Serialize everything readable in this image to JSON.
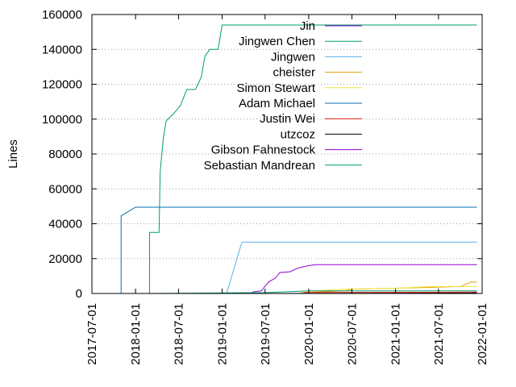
{
  "chart_data": {
    "type": "line",
    "title": "",
    "xlabel": "",
    "ylabel": "Lines",
    "ylim": [
      0,
      160000
    ],
    "xlim": [
      "2017-07-01",
      "2022-01-01"
    ],
    "x_ticks": [
      "2017-07-01",
      "2018-01-01",
      "2018-07-01",
      "2019-01-01",
      "2019-07-01",
      "2020-01-01",
      "2020-07-01",
      "2021-01-01",
      "2021-07-01",
      "2022-01-01"
    ],
    "y_ticks": [
      0,
      20000,
      40000,
      60000,
      80000,
      100000,
      120000,
      140000,
      160000
    ],
    "y_tick_labels": [
      "0",
      "20000",
      "40000",
      "60000",
      "80000",
      "100000",
      "120000",
      "140000",
      "160000"
    ],
    "grid": "horizontal dotted at y ticks",
    "legend_placement": "top-center",
    "series": [
      {
        "name": "Jin",
        "color": "#9400d3",
        "points": [
          [
            "2017-07-01",
            0
          ],
          [
            "2021-11-25",
            0
          ],
          [
            "2021-11-25",
            500
          ],
          [
            "2021-12-10",
            600
          ]
        ]
      },
      {
        "name": "Jingwen Chen",
        "color": "#009e73",
        "points": [
          [
            "2018-03-01",
            0
          ],
          [
            "2018-03-01",
            35000
          ],
          [
            "2018-04-10",
            35000
          ],
          [
            "2018-04-15",
            70000
          ],
          [
            "2018-04-28",
            89000
          ],
          [
            "2018-05-10",
            99000
          ],
          [
            "2018-06-10",
            103000
          ],
          [
            "2018-07-10",
            108000
          ],
          [
            "2018-08-05",
            117000
          ],
          [
            "2018-09-10",
            117000
          ],
          [
            "2018-10-05",
            124000
          ],
          [
            "2018-10-20",
            136000
          ],
          [
            "2018-11-10",
            140000
          ],
          [
            "2018-12-15",
            140000
          ],
          [
            "2019-01-01",
            154000
          ],
          [
            "2021-12-10",
            154000
          ]
        ]
      },
      {
        "name": "Jingwen",
        "color": "#56b4e9",
        "points": [
          [
            "2017-07-01",
            0
          ],
          [
            "2019-01-20",
            0
          ],
          [
            "2019-03-25",
            29500
          ],
          [
            "2021-12-10",
            29500
          ]
        ]
      },
      {
        "name": "cheister",
        "color": "#e69f00",
        "points": [
          [
            "2019-12-01",
            0
          ],
          [
            "2019-12-01",
            500
          ],
          [
            "2020-06-01",
            1500
          ],
          [
            "2020-07-01",
            2500
          ],
          [
            "2021-01-01",
            3000
          ],
          [
            "2021-06-01",
            3500
          ],
          [
            "2021-10-01",
            4000
          ],
          [
            "2021-11-15",
            6500
          ],
          [
            "2021-12-10",
            6500
          ]
        ]
      },
      {
        "name": "Simon Stewart",
        "color": "#f0e442",
        "points": [
          [
            "2019-12-01",
            0
          ],
          [
            "2020-02-01",
            1500
          ],
          [
            "2020-06-01",
            2500
          ],
          [
            "2021-01-01",
            3000
          ],
          [
            "2021-06-01",
            4000
          ],
          [
            "2021-12-10",
            4000
          ]
        ]
      },
      {
        "name": "Adam Michael",
        "color": "#0072b2",
        "points": [
          [
            "2017-11-01",
            0
          ],
          [
            "2017-11-01",
            44500
          ],
          [
            "2018-01-01",
            49500
          ],
          [
            "2021-12-10",
            49500
          ]
        ]
      },
      {
        "name": "Justin Wei",
        "color": "#e51e10",
        "points": [
          [
            "2019-12-15",
            0
          ],
          [
            "2019-12-15",
            600
          ],
          [
            "2021-12-10",
            800
          ]
        ]
      },
      {
        "name": "utzcoz",
        "color": "#000000",
        "points": [
          [
            "2019-05-01",
            0
          ],
          [
            "2021-12-10",
            300
          ]
        ]
      },
      {
        "name": "Gibson Fahnestock",
        "color": "#9400d3",
        "points": [
          [
            "2019-05-01",
            0
          ],
          [
            "2019-05-15",
            1000
          ],
          [
            "2019-06-15",
            1500
          ],
          [
            "2019-07-15",
            6500
          ],
          [
            "2019-08-15",
            9000
          ],
          [
            "2019-09-01",
            12000
          ],
          [
            "2019-10-15",
            12500
          ],
          [
            "2019-11-15",
            14500
          ],
          [
            "2020-01-01",
            16000
          ],
          [
            "2020-02-01",
            16500
          ],
          [
            "2021-12-10",
            16500
          ]
        ]
      },
      {
        "name": "Sebastian Mandrean",
        "color": "#009e73",
        "points": [
          [
            "2018-03-01",
            0
          ],
          [
            "2019-07-01",
            500
          ],
          [
            "2020-01-01",
            1500
          ],
          [
            "2021-12-10",
            1500
          ]
        ]
      }
    ]
  }
}
